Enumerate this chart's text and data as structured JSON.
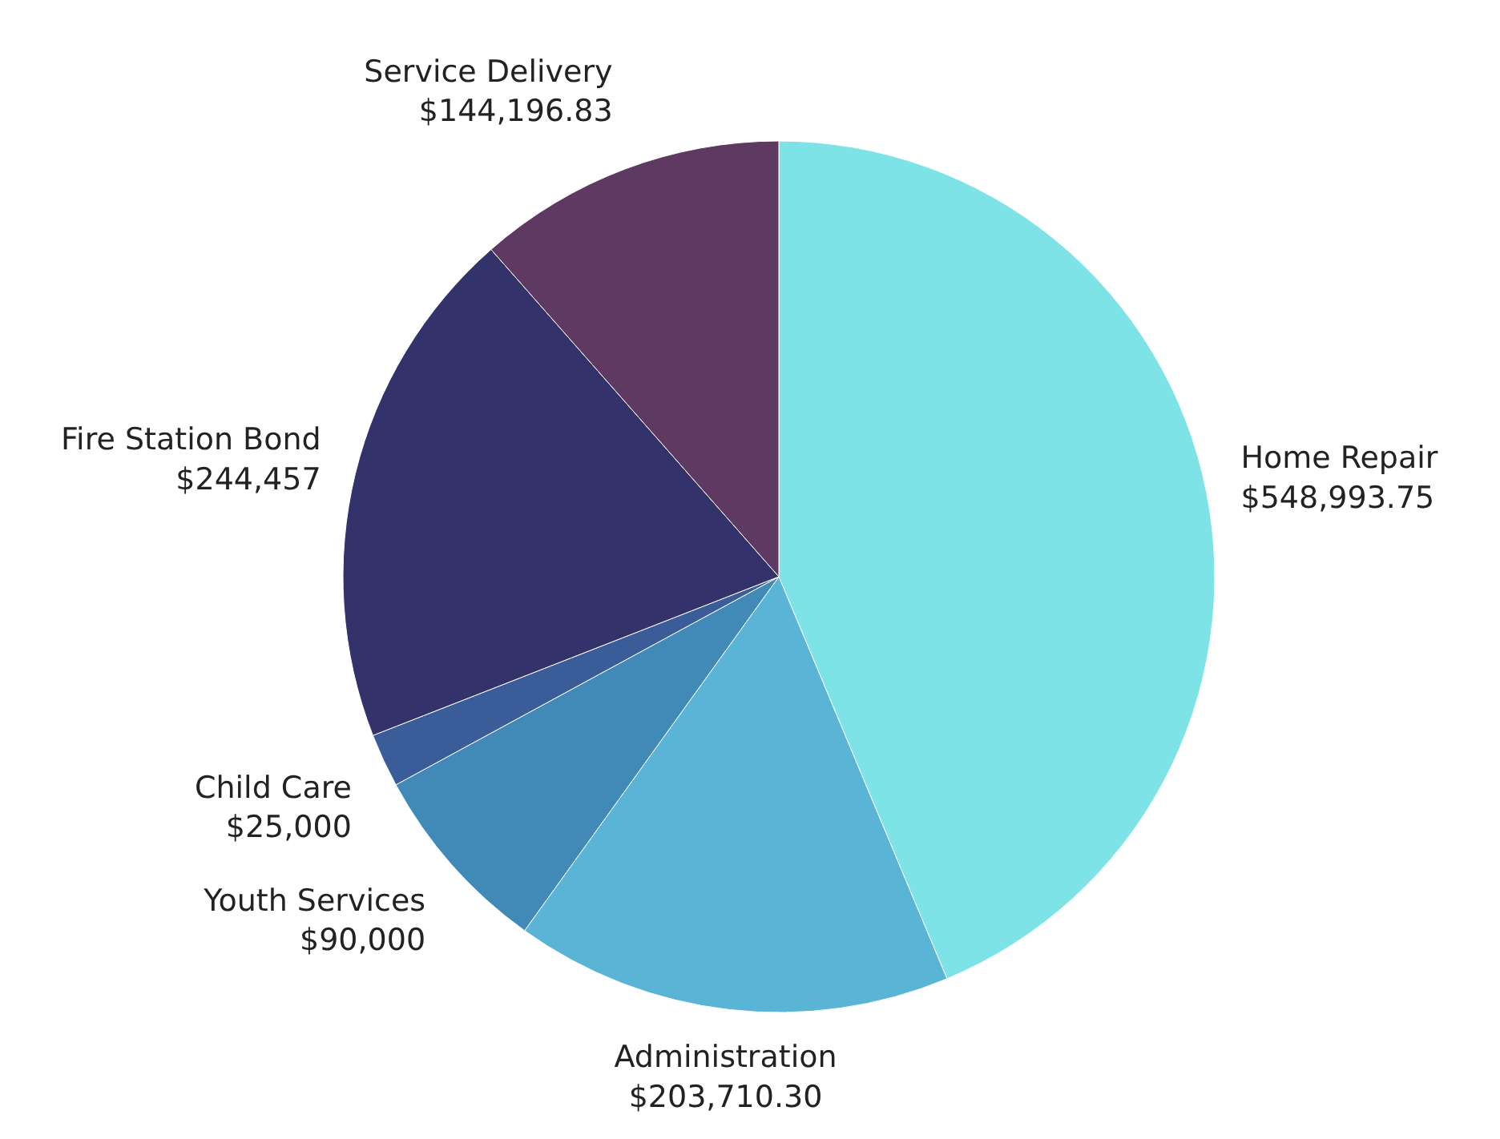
{
  "chart_data": {
    "type": "pie",
    "categories": [
      "Home Repair",
      "Administration",
      "Youth Services",
      "Child Care",
      "Fire Station Bond",
      "Service Delivery"
    ],
    "values": [
      548993.75,
      203710.3,
      90000,
      25000,
      244457,
      144196.83
    ],
    "value_labels": [
      "$548,993.75",
      "$203,710.30",
      "$90,000",
      "$25,000",
      "$244,457",
      "$144,196.83"
    ],
    "colors": [
      "#7de3e6",
      "#5ab4d6",
      "#418ab8",
      "#3a5c98",
      "#34326b",
      "#5e3a63"
    ]
  }
}
